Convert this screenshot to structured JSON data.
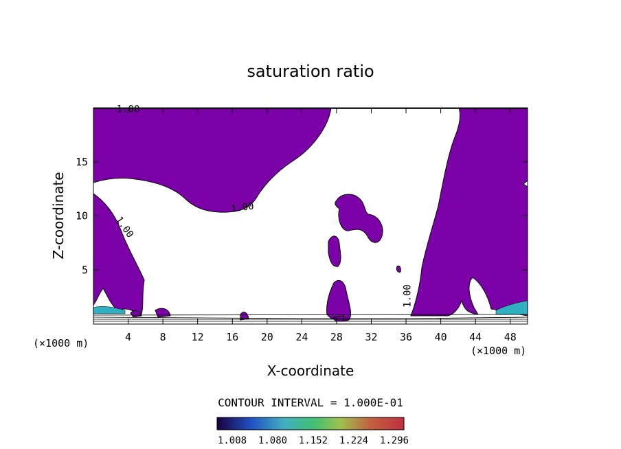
{
  "chart_data": {
    "type": "contour",
    "title": "saturation ratio",
    "xlabel": "X-coordinate",
    "ylabel": "Z-coordinate",
    "x_unit_label": "(×1000 m)",
    "x_unit_label_right": "(×1000 m)",
    "xlim": [
      0,
      50
    ],
    "ylim": [
      0,
      20
    ],
    "x_ticks": [
      4,
      8,
      12,
      16,
      20,
      24,
      28,
      32,
      36,
      40,
      44,
      48
    ],
    "y_ticks": [
      5,
      10,
      15
    ],
    "contour_interval_label": "CONTOUR INTERVAL = 1.000E-01",
    "contour_labels": [
      {
        "text": "1.00",
        "x": 4.0,
        "y": 19.6
      },
      {
        "text": "1.00",
        "x": 17.2,
        "y": 10.5
      },
      {
        "text": "1.00",
        "x": 3.3,
        "y": 8.8
      },
      {
        "text": "1.00",
        "x": 36.5,
        "y": 2.6
      }
    ],
    "fill_color": "#7b00a8",
    "colorbar": {
      "ticks": [
        "1.008",
        "1.080",
        "1.152",
        "1.224",
        "1.296"
      ],
      "colors": [
        "#1a0050",
        "#2040b0",
        "#40a0c0",
        "#40c080",
        "#a0c060",
        "#c06040",
        "#c04060"
      ]
    }
  }
}
